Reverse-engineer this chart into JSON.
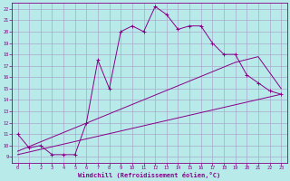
{
  "title": "",
  "xlabel": "Windchill (Refroidissement éolien,°C)",
  "xlim": [
    -0.5,
    23.5
  ],
  "ylim": [
    8.5,
    22.5
  ],
  "xticks": [
    0,
    1,
    2,
    3,
    4,
    5,
    6,
    7,
    8,
    9,
    10,
    11,
    12,
    13,
    14,
    15,
    16,
    17,
    18,
    19,
    20,
    21,
    22,
    23
  ],
  "yticks": [
    9,
    10,
    11,
    12,
    13,
    14,
    15,
    16,
    17,
    18,
    19,
    20,
    21,
    22
  ],
  "bg_color": "#b8eaea",
  "grid_color": "#aaaacc",
  "line_color": "#880088",
  "line1_x": [
    0,
    1,
    2,
    3,
    4,
    5,
    6,
    7,
    8,
    9,
    10,
    11,
    12,
    13,
    14,
    15,
    16,
    17,
    18,
    19,
    20,
    21,
    22,
    23
  ],
  "line1_y": [
    11.0,
    9.8,
    10.0,
    9.2,
    9.2,
    9.2,
    12.0,
    17.5,
    15.0,
    20.0,
    20.5,
    20.0,
    22.2,
    21.5,
    20.2,
    20.5,
    20.5,
    19.0,
    18.0,
    18.0,
    16.2,
    15.5,
    14.8,
    14.5
  ],
  "line2_x": [
    0,
    19,
    21,
    23
  ],
  "line2_y": [
    9.5,
    17.3,
    17.8,
    15.0
  ],
  "line3_x": [
    0,
    23
  ],
  "line3_y": [
    9.2,
    14.5
  ]
}
